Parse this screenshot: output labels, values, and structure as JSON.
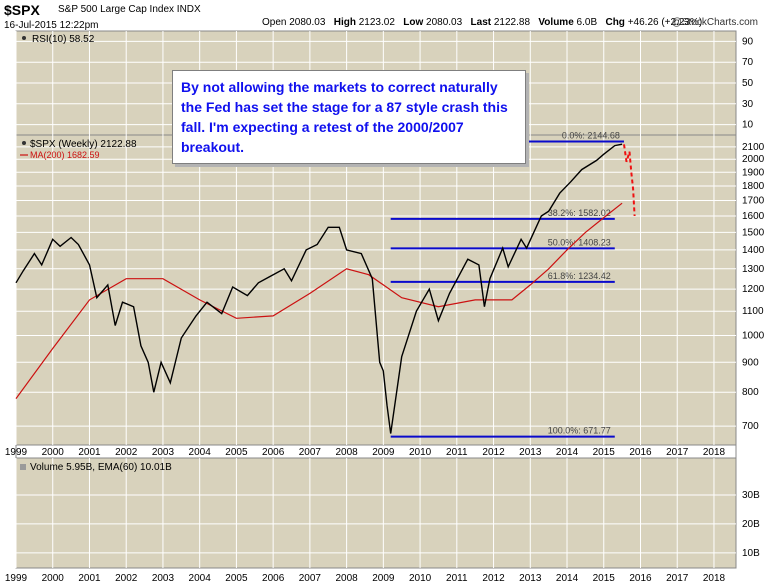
{
  "header": {
    "symbol": "$SPX",
    "name": "S&P 500 Large Cap Index",
    "exchange": "INDX",
    "datetime": "16-Jul-2015 12:22pm",
    "open_label": "Open",
    "open": "2080.03",
    "high_label": "High",
    "high": "2123.02",
    "low_label": "Low",
    "low": "2080.03",
    "last_label": "Last",
    "last": "2122.88",
    "volume_label": "Volume",
    "volume": "6.0B",
    "chg_label": "Chg",
    "chg": "+46.26 (+2.23%)",
    "logo": "@StockCharts.com"
  },
  "callout": {
    "text": "By not allowing the markets to correct naturally the Fed has set the stage for a 87 style crash this fall. I'm expecting a retest of the 2000/2007 breakout."
  },
  "colors": {
    "panel_bg": "#d8d2bc",
    "grid": "#ffffff",
    "price": "#000000",
    "ma": "#cc1111",
    "fib": "#0a0acc",
    "forecast": "#ee1111",
    "text_blue": "#1010ee"
  },
  "chart_data": [
    {
      "panel": "rsi",
      "type": "line",
      "legend": "RSI(10) 58.52",
      "ticks": [
        90,
        70,
        50,
        30,
        10
      ]
    },
    {
      "panel": "price",
      "type": "line",
      "legend_price": "$SPX (Weekly) 2122.88",
      "legend_ma": "MA(200) 1682.59",
      "y_scale": "log",
      "ylim": [
        650,
        2200
      ],
      "xlim": [
        1999.0,
        2018.6
      ],
      "yticks": [
        700,
        800,
        900,
        1000,
        1100,
        1200,
        1300,
        1400,
        1500,
        1600,
        1700,
        1800,
        1900,
        2000,
        2100
      ],
      "xticks": [
        "1999",
        "2000",
        "2001",
        "2002",
        "2003",
        "2004",
        "2005",
        "2006",
        "2007",
        "2008",
        "2009",
        "2010",
        "2011",
        "2012",
        "2013",
        "2014",
        "2015",
        "2016",
        "2017",
        "2018"
      ],
      "series": [
        {
          "name": "$SPX",
          "x": [
            1999.0,
            1999.2,
            1999.5,
            1999.7,
            2000.0,
            2000.2,
            2000.5,
            2000.7,
            2001.0,
            2001.2,
            2001.5,
            2001.7,
            2001.9,
            2002.2,
            2002.4,
            2002.6,
            2002.75,
            2002.95,
            2003.2,
            2003.5,
            2003.9,
            2004.2,
            2004.6,
            2004.9,
            2005.3,
            2005.6,
            2005.9,
            2006.3,
            2006.5,
            2006.9,
            2007.2,
            2007.5,
            2007.8,
            2008.0,
            2008.4,
            2008.7,
            2008.9,
            2009.0,
            2009.1,
            2009.2,
            2009.5,
            2009.9,
            2010.25,
            2010.5,
            2010.8,
            2011.3,
            2011.6,
            2011.75,
            2011.9,
            2012.25,
            2012.4,
            2012.75,
            2012.9,
            2013.3,
            2013.5,
            2013.8,
            2014.1,
            2014.4,
            2014.8,
            2015.0,
            2015.3,
            2015.5
          ],
          "y": [
            1230,
            1290,
            1380,
            1320,
            1460,
            1420,
            1470,
            1430,
            1320,
            1160,
            1220,
            1040,
            1140,
            1120,
            960,
            900,
            800,
            900,
            830,
            990,
            1080,
            1140,
            1090,
            1210,
            1170,
            1230,
            1260,
            1300,
            1240,
            1400,
            1430,
            1530,
            1530,
            1400,
            1380,
            1250,
            900,
            870,
            760,
            680,
            920,
            1100,
            1200,
            1060,
            1180,
            1350,
            1320,
            1120,
            1250,
            1410,
            1310,
            1460,
            1410,
            1600,
            1630,
            1750,
            1830,
            1920,
            1990,
            2040,
            2110,
            2122
          ]
        },
        {
          "name": "MA(200)",
          "x": [
            1999.0,
            2000.0,
            2001.0,
            2002.0,
            2003.0,
            2004.0,
            2005.0,
            2006.0,
            2007.0,
            2008.0,
            2008.6,
            2009.5,
            2010.5,
            2011.5,
            2012.5,
            2013.0,
            2013.5,
            2014.0,
            2014.5,
            2015.0,
            2015.5
          ],
          "y": [
            780,
            950,
            1150,
            1250,
            1250,
            1150,
            1070,
            1080,
            1180,
            1300,
            1270,
            1160,
            1120,
            1150,
            1150,
            1220,
            1300,
            1400,
            1500,
            1590,
            1682.59
          ]
        },
        {
          "name": "forecast",
          "x": [
            2015.55,
            2015.62,
            2015.7,
            2015.75,
            2015.8,
            2015.84
          ],
          "y": [
            2120,
            1980,
            2060,
            1900,
            1780,
            1600
          ]
        }
      ],
      "fib_levels": [
        {
          "label": "0.0%: 2144.68",
          "value": 2144.68
        },
        {
          "label": "38.2%: 1582.02",
          "value": 1582.02
        },
        {
          "label": "50.0%: 1408.23",
          "value": 1408.23
        },
        {
          "label": "61.8%: 1234.42",
          "value": 1234.42
        },
        {
          "label": "100.0%: 671.77",
          "value": 671.77
        }
      ]
    },
    {
      "panel": "volume",
      "type": "bar",
      "legend": "Volume 5.95B, EMA(60) 10.01B",
      "ticks": [
        "30B",
        "20B",
        "10B"
      ]
    }
  ]
}
